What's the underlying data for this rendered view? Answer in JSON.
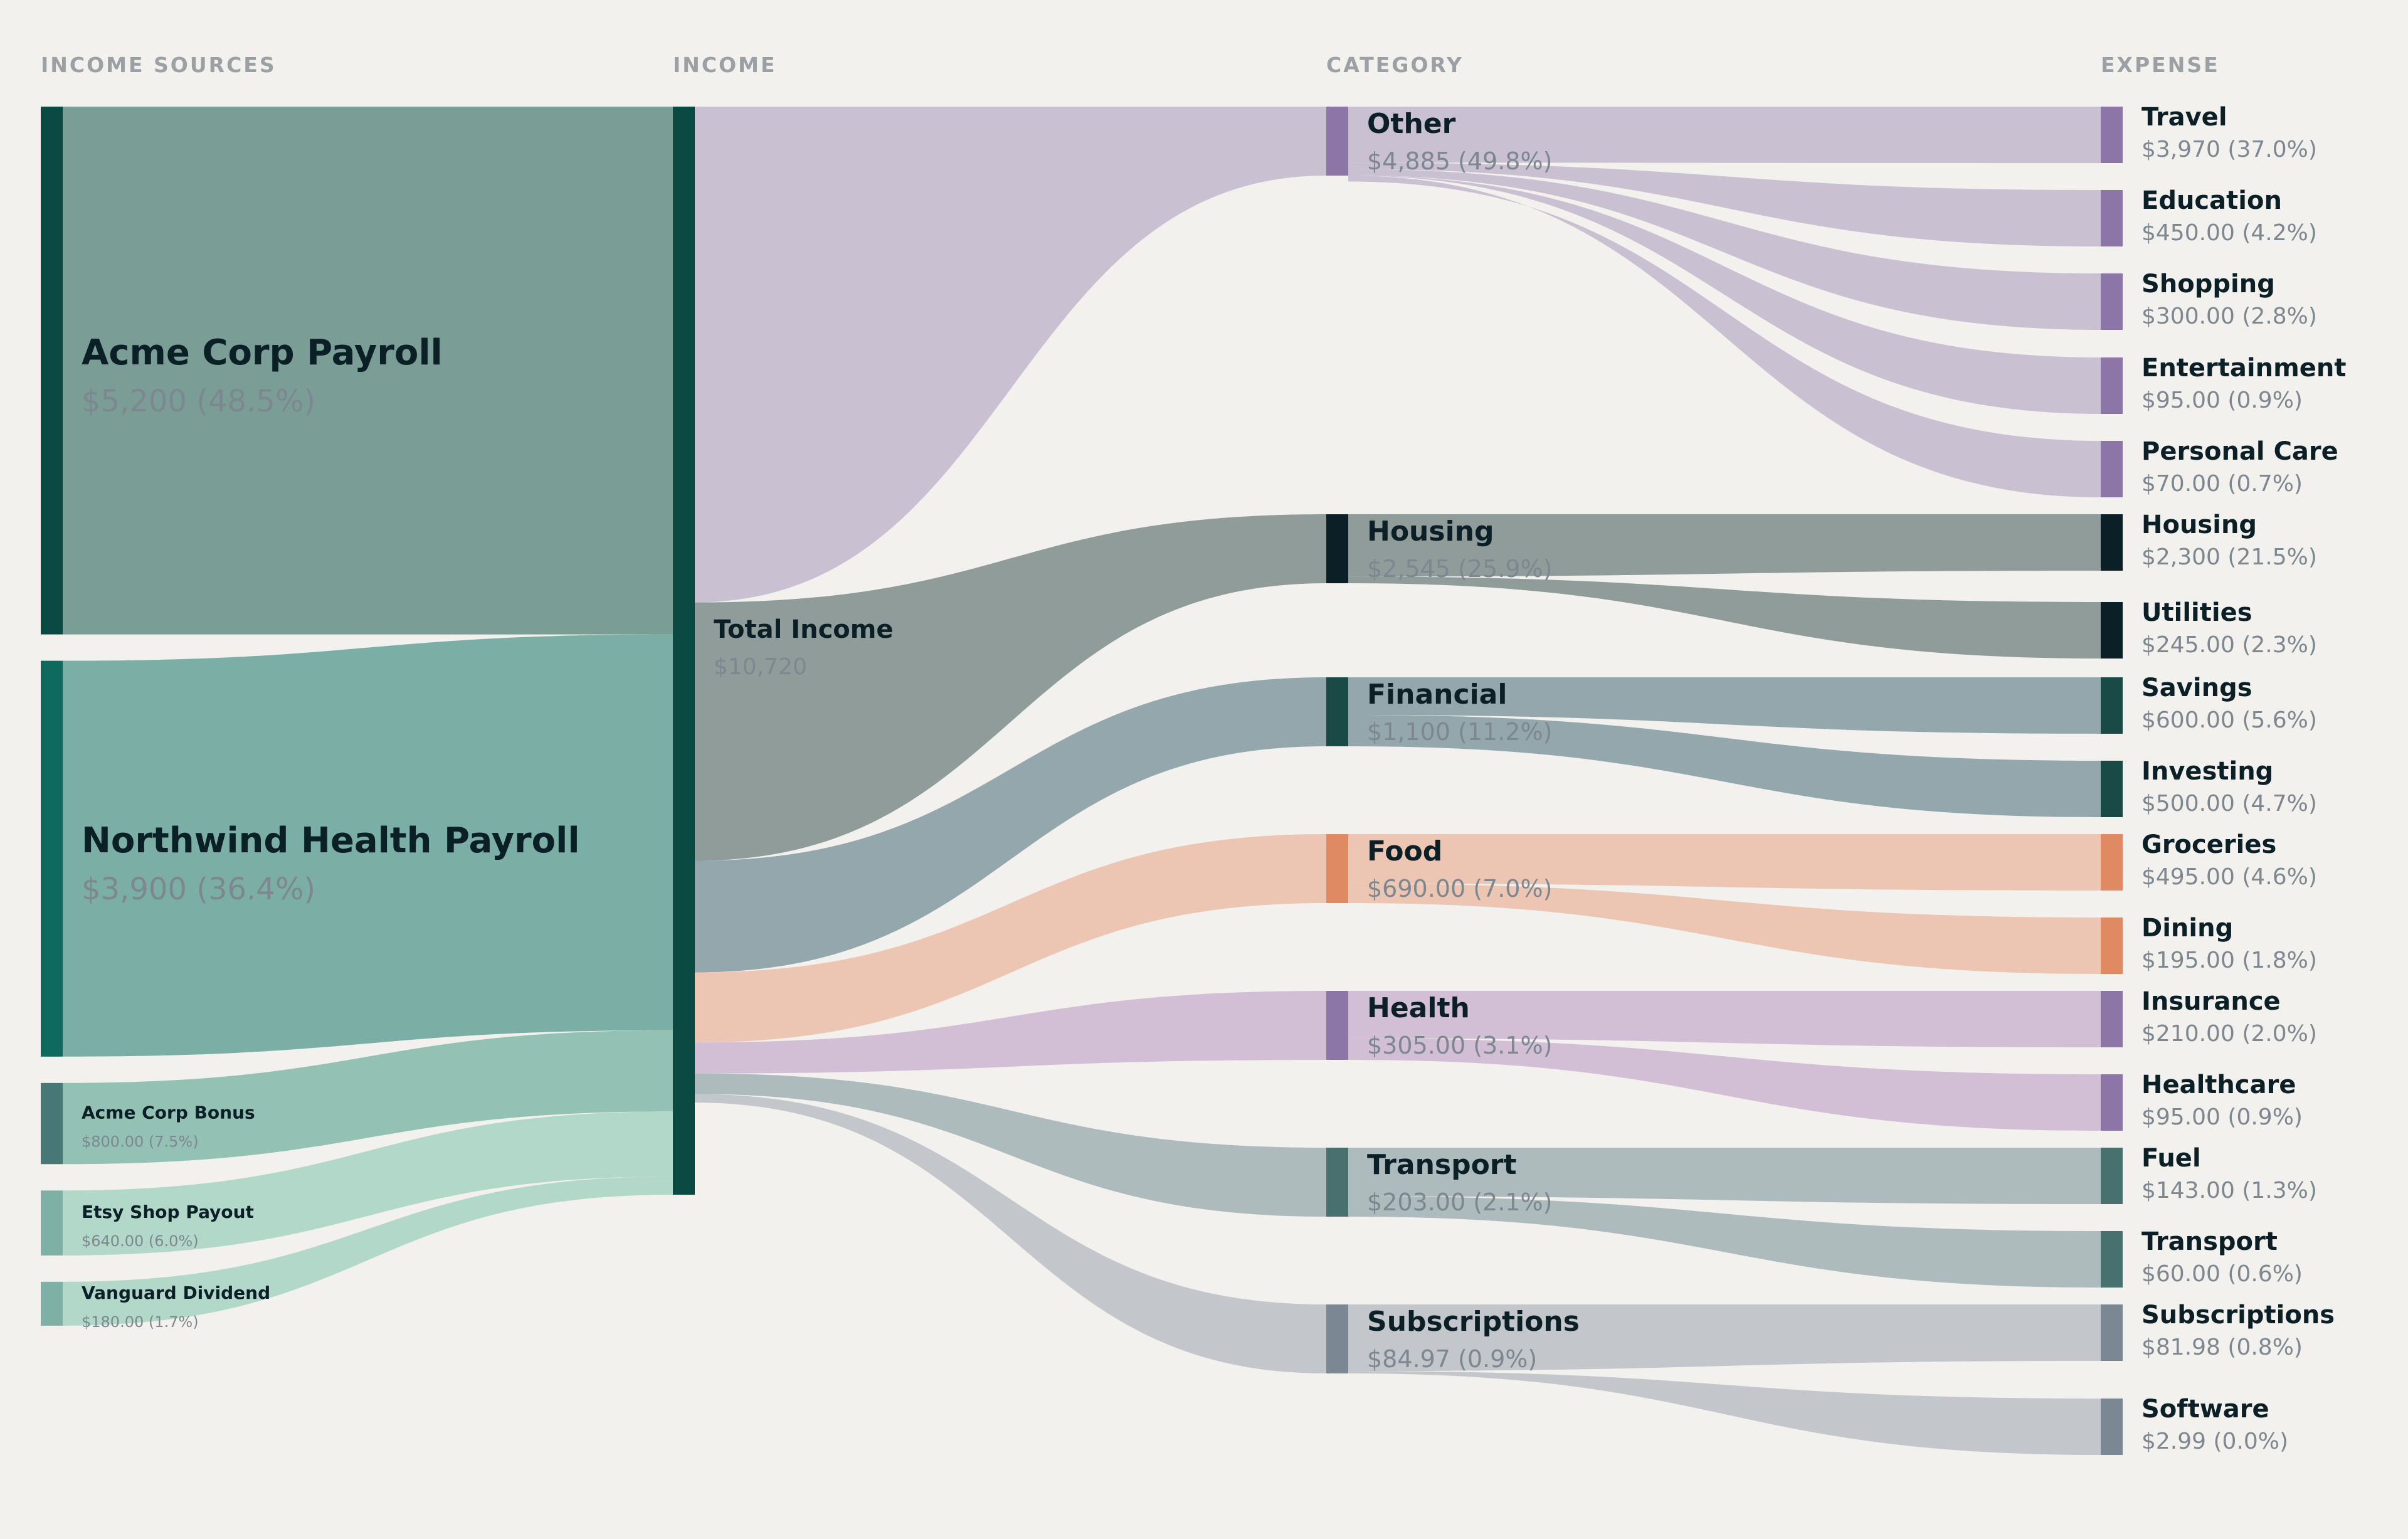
{
  "columns": [
    "INCOME SOURCES",
    "INCOME",
    "CATEGORY",
    "EXPENSE"
  ],
  "chart_data": {
    "type": "sankey",
    "income_sources": [
      {
        "name": "Acme Corp Payroll",
        "value_label": "$5,200 (48.5%)",
        "value": 5200,
        "color": "#0a4a42",
        "flow_color": "#7a9e96"
      },
      {
        "name": "Northwind Health Payroll",
        "value_label": "$3,900 (36.4%)",
        "value": 3900,
        "color": "#0d6a5d",
        "flow_color": "#7bafa6"
      },
      {
        "name": "Acme Corp Bonus",
        "value_label": "$800.00 (7.5%)",
        "value": 800,
        "color": "#477876",
        "flow_color": "#93c2b5"
      },
      {
        "name": "Etsy Shop Payout",
        "value_label": "$640.00 (6.0%)",
        "value": 640,
        "color": "#7fb0a6",
        "flow_color": "#b2d8c9"
      },
      {
        "name": "Vanguard Dividend",
        "value_label": "$180.00 (1.7%)",
        "value": 180,
        "color": "#7fb0a6",
        "flow_color": "#b2d8c9"
      }
    ],
    "income": {
      "name": "Total Income",
      "value_label": "$10,720",
      "value": 10720,
      "color": "#0a4a42"
    },
    "categories": [
      {
        "name": "Other",
        "value_label": "$4,885 (49.8%)",
        "value": 4885,
        "color": "#8c76a8",
        "flow_color": "#c9c0d2"
      },
      {
        "name": "Housing",
        "value_label": "$2,545 (25.9%)",
        "value": 2545,
        "color": "#0b1f26",
        "flow_color": "#8f9c9a"
      },
      {
        "name": "Financial",
        "value_label": "$1,100 (11.2%)",
        "value": 1100,
        "color": "#1a4a45",
        "flow_color": "#94a7ad"
      },
      {
        "name": "Food",
        "value_label": "$690.00 (7.0%)",
        "value": 690,
        "color": "#e08a63",
        "flow_color": "#ecc6b3"
      },
      {
        "name": "Health",
        "value_label": "$305.00 (3.1%)",
        "value": 305,
        "color": "#8c76a8",
        "flow_color": "#d2bfd6"
      },
      {
        "name": "Transport",
        "value_label": "$203.00 (2.1%)",
        "value": 203,
        "color": "#47706f",
        "flow_color": "#adbbbc"
      },
      {
        "name": "Subscriptions",
        "value_label": "$84.97 (0.9%)",
        "value": 84.97,
        "color": "#7b8793",
        "flow_color": "#c3c6cb"
      }
    ],
    "expenses": [
      {
        "name": "Travel",
        "value_label": "$3,970 (37.0%)",
        "value": 3970,
        "category": 0
      },
      {
        "name": "Education",
        "value_label": "$450.00 (4.2%)",
        "value": 450,
        "category": 0
      },
      {
        "name": "Shopping",
        "value_label": "$300.00 (2.8%)",
        "value": 300,
        "category": 0
      },
      {
        "name": "Entertainment",
        "value_label": "$95.00 (0.9%)",
        "value": 95,
        "category": 0
      },
      {
        "name": "Personal Care",
        "value_label": "$70.00 (0.7%)",
        "value": 70,
        "category": 0
      },
      {
        "name": "Housing",
        "value_label": "$2,300 (21.5%)",
        "value": 2300,
        "category": 1
      },
      {
        "name": "Utilities",
        "value_label": "$245.00 (2.3%)",
        "value": 245,
        "category": 1
      },
      {
        "name": "Savings",
        "value_label": "$600.00 (5.6%)",
        "value": 600,
        "category": 2
      },
      {
        "name": "Investing",
        "value_label": "$500.00 (4.7%)",
        "value": 500,
        "category": 2
      },
      {
        "name": "Groceries",
        "value_label": "$495.00 (4.6%)",
        "value": 495,
        "category": 3
      },
      {
        "name": "Dining",
        "value_label": "$195.00 (1.8%)",
        "value": 195,
        "category": 3
      },
      {
        "name": "Insurance",
        "value_label": "$210.00 (2.0%)",
        "value": 210,
        "category": 4
      },
      {
        "name": "Healthcare",
        "value_label": "$95.00 (0.9%)",
        "value": 95,
        "category": 4
      },
      {
        "name": "Fuel",
        "value_label": "$143.00 (1.3%)",
        "value": 143,
        "category": 5
      },
      {
        "name": "Transport",
        "value_label": "$60.00 (0.6%)",
        "value": 60,
        "category": 5
      },
      {
        "name": "Subscriptions",
        "value_label": "$81.98 (0.8%)",
        "value": 81.98,
        "category": 6
      },
      {
        "name": "Software",
        "value_label": "$2.99 (0.0%)",
        "value": 2.99,
        "category": 6
      }
    ]
  }
}
